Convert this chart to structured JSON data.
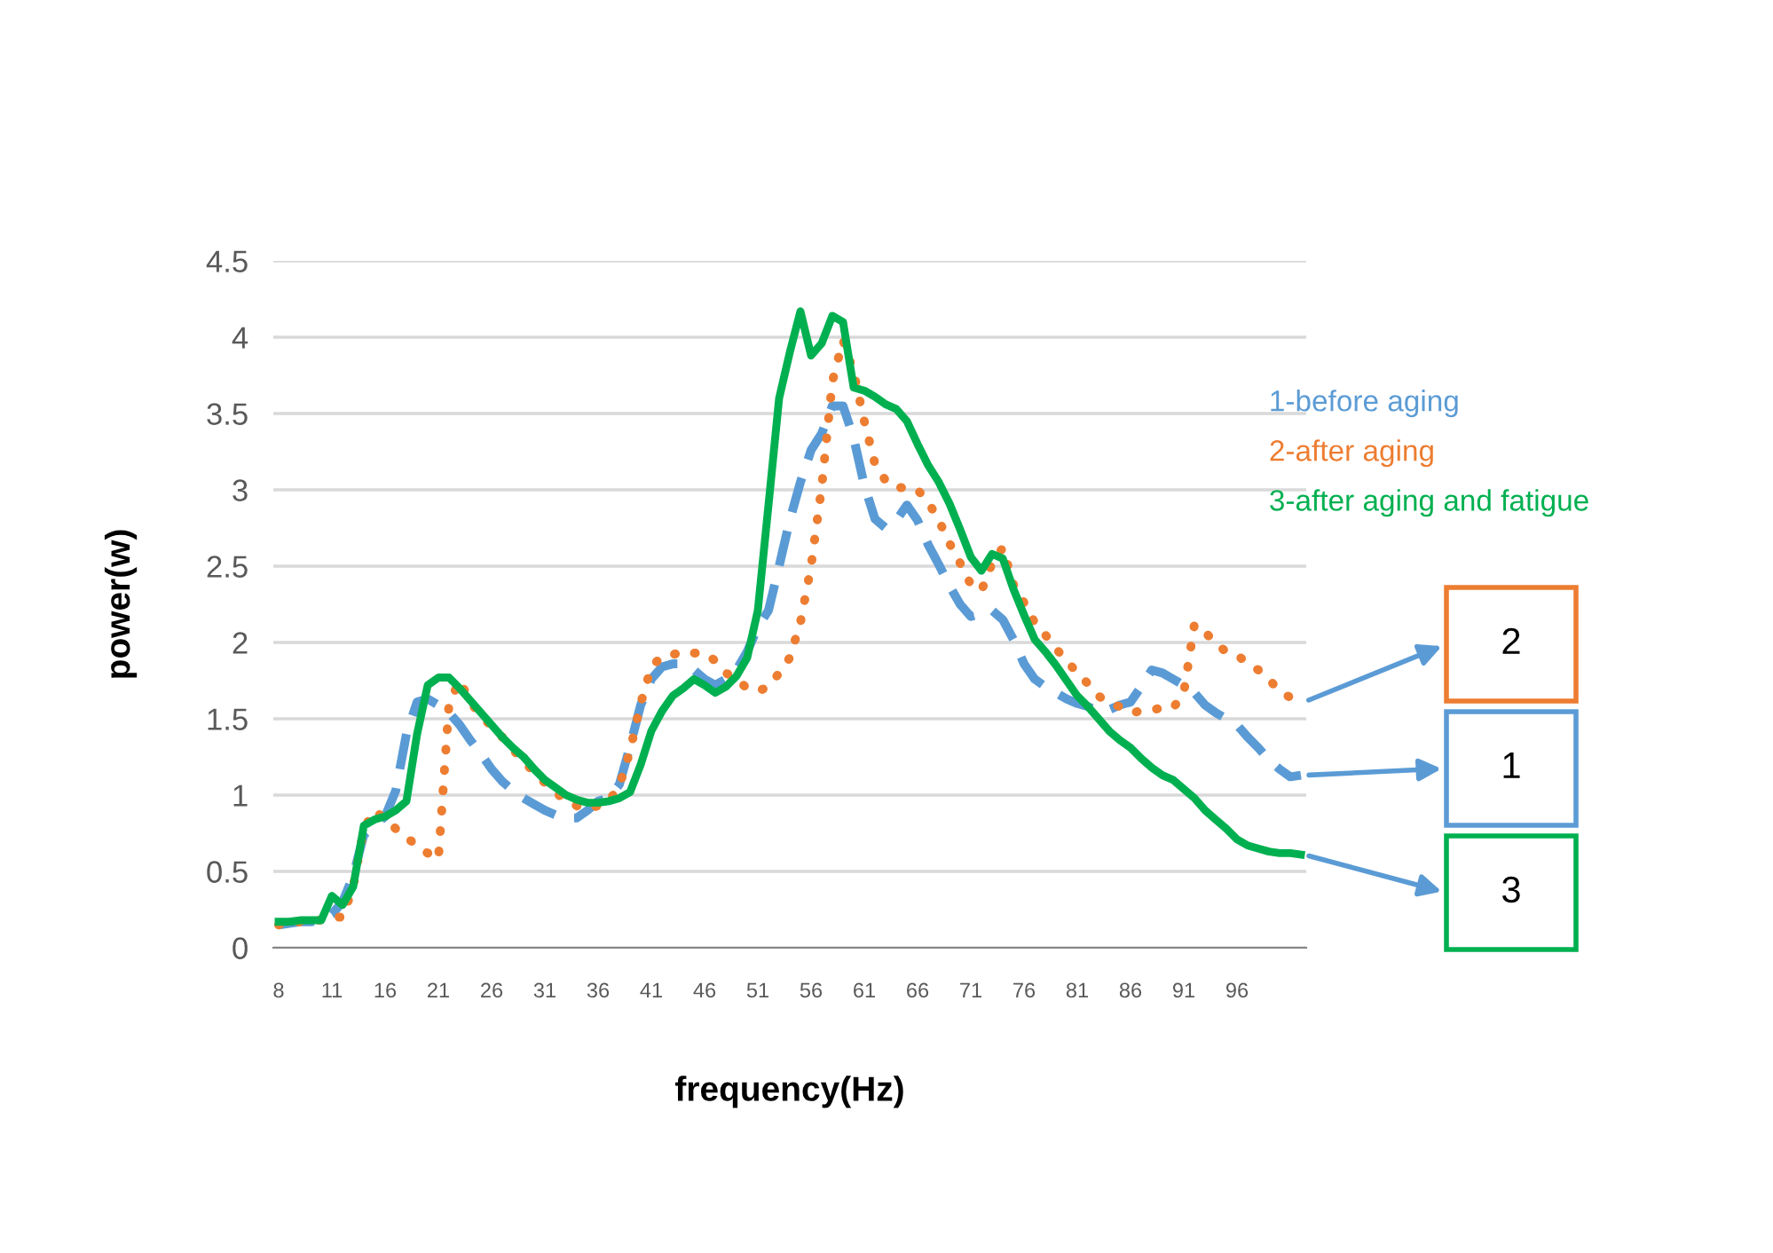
{
  "chart_data": {
    "type": "line",
    "xlabel": "frequency(Hz)",
    "ylabel": "power(w)",
    "categories": [
      "8",
      null,
      null,
      null,
      null,
      "11",
      null,
      null,
      null,
      null,
      "16",
      null,
      null,
      null,
      null,
      "21",
      null,
      null,
      null,
      null,
      "26",
      null,
      null,
      null,
      null,
      "31",
      null,
      null,
      null,
      null,
      "36",
      null,
      null,
      null,
      null,
      "41",
      null,
      null,
      null,
      null,
      "46",
      null,
      null,
      null,
      null,
      "51",
      null,
      null,
      null,
      null,
      "56",
      null,
      null,
      null,
      null,
      "61",
      null,
      null,
      null,
      null,
      "66",
      null,
      null,
      null,
      null,
      "71",
      null,
      null,
      null,
      null,
      "76",
      null,
      null,
      null,
      null,
      "81",
      null,
      null,
      null,
      null,
      "86",
      null,
      null,
      null,
      null,
      "91",
      null,
      null,
      null,
      null,
      "96",
      null,
      null,
      null,
      null,
      null,
      null
    ],
    "series": [
      {
        "name": "1-before aging",
        "color": "#5b9bd5",
        "line_style": "dashed",
        "values": [
          0.15,
          0.16,
          0.17,
          0.17,
          0.18,
          0.22,
          0.3,
          0.47,
          0.74,
          0.8,
          0.86,
          1.03,
          1.4,
          1.61,
          1.63,
          1.59,
          1.54,
          1.46,
          1.36,
          1.27,
          1.17,
          1.09,
          1.03,
          0.98,
          0.94,
          0.9,
          0.87,
          0.85,
          0.85,
          0.9,
          0.96,
          0.98,
          1.07,
          1.32,
          1.59,
          1.76,
          1.84,
          1.86,
          1.86,
          1.82,
          1.76,
          1.72,
          1.76,
          1.82,
          1.94,
          2.1,
          2.21,
          2.5,
          2.8,
          3.05,
          3.26,
          3.37,
          3.55,
          3.55,
          3.34,
          3.03,
          2.81,
          2.75,
          2.8,
          2.9,
          2.8,
          2.64,
          2.51,
          2.37,
          2.25,
          2.17,
          2.19,
          2.21,
          2.15,
          2.02,
          1.86,
          1.76,
          1.71,
          1.67,
          1.63,
          1.6,
          1.58,
          1.55,
          1.56,
          1.59,
          1.61,
          1.71,
          1.82,
          1.8,
          1.76,
          1.72,
          1.67,
          1.59,
          1.54,
          1.5,
          1.46,
          1.38,
          1.31,
          1.23,
          1.17,
          1.12,
          1.13
        ]
      },
      {
        "name": "2-after aging",
        "color": "#ed7d31",
        "line_style": "dotted",
        "values": [
          0.15,
          0.16,
          0.17,
          0.18,
          0.18,
          0.2,
          0.2,
          0.4,
          0.78,
          0.9,
          0.84,
          0.78,
          0.73,
          0.66,
          0.62,
          0.58,
          1.6,
          1.75,
          1.61,
          1.52,
          1.45,
          1.38,
          1.3,
          1.22,
          1.15,
          1.08,
          1.02,
          0.96,
          0.93,
          0.91,
          0.93,
          0.96,
          1.06,
          1.29,
          1.6,
          1.84,
          1.91,
          1.92,
          1.94,
          1.93,
          1.93,
          1.88,
          1.8,
          1.76,
          1.7,
          1.68,
          1.71,
          1.8,
          1.9,
          2.13,
          2.5,
          3.02,
          3.71,
          3.98,
          3.77,
          3.45,
          3.17,
          3.06,
          3.01,
          3.02,
          3.0,
          2.92,
          2.8,
          2.65,
          2.52,
          2.38,
          2.34,
          2.52,
          2.62,
          2.38,
          2.26,
          2.13,
          2.05,
          1.96,
          1.88,
          1.8,
          1.73,
          1.65,
          1.6,
          1.58,
          1.54,
          1.55,
          1.56,
          1.57,
          1.57,
          1.67,
          2.12,
          2.07,
          1.99,
          1.94,
          1.92,
          1.86,
          1.82,
          1.76,
          1.68,
          1.64,
          1.61
        ]
      },
      {
        "name": "3-after aging and fatigue",
        "color": "#00b050",
        "line_style": "solid",
        "values": [
          0.17,
          0.17,
          0.18,
          0.18,
          0.18,
          0.34,
          0.28,
          0.4,
          0.8,
          0.84,
          0.86,
          0.9,
          0.96,
          1.4,
          1.72,
          1.77,
          1.77,
          1.7,
          1.62,
          1.54,
          1.46,
          1.38,
          1.31,
          1.25,
          1.17,
          1.1,
          1.05,
          1.0,
          0.97,
          0.95,
          0.95,
          0.96,
          0.98,
          1.02,
          1.2,
          1.42,
          1.55,
          1.65,
          1.7,
          1.76,
          1.72,
          1.67,
          1.71,
          1.78,
          1.9,
          2.21,
          2.9,
          3.6,
          3.9,
          4.17,
          3.88,
          3.96,
          4.14,
          4.1,
          3.67,
          3.65,
          3.61,
          3.56,
          3.53,
          3.45,
          3.3,
          3.16,
          3.05,
          2.91,
          2.74,
          2.56,
          2.47,
          2.58,
          2.55,
          2.35,
          2.18,
          2.02,
          1.94,
          1.85,
          1.75,
          1.65,
          1.58,
          1.5,
          1.42,
          1.36,
          1.31,
          1.24,
          1.18,
          1.13,
          1.1,
          1.04,
          0.98,
          0.9,
          0.84,
          0.78,
          0.71,
          0.67,
          0.65,
          0.63,
          0.62,
          0.62,
          0.61
        ]
      }
    ],
    "ylim": [
      0,
      4.5
    ],
    "yticks": [
      0,
      0.5,
      1,
      1.5,
      2,
      2.5,
      3,
      3.5,
      4,
      4.5
    ],
    "grid": "y",
    "legend": "right",
    "marker": "none",
    "annotations": [
      "2",
      "1",
      "3"
    ]
  }
}
